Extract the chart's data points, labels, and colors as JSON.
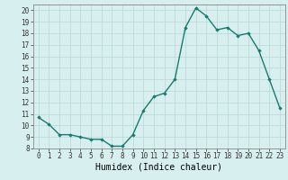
{
  "x": [
    0,
    1,
    2,
    3,
    4,
    5,
    6,
    7,
    8,
    9,
    10,
    11,
    12,
    13,
    14,
    15,
    16,
    17,
    18,
    19,
    20,
    21,
    22,
    23
  ],
  "y": [
    10.7,
    10.1,
    9.2,
    9.2,
    9.0,
    8.8,
    8.8,
    8.2,
    8.2,
    9.2,
    11.3,
    12.5,
    12.8,
    14.0,
    18.5,
    20.2,
    19.5,
    18.3,
    18.5,
    17.8,
    18.0,
    16.5,
    14.0,
    11.5
  ],
  "line_color": "#1a7a6e",
  "marker": "D",
  "marker_size": 1.8,
  "bg_color": "#d8efef",
  "grid_color": "#b8d8d8",
  "xlabel": "Humidex (Indice chaleur)",
  "ylim": [
    8,
    20.5
  ],
  "xlim": [
    -0.5,
    23.5
  ],
  "yticks": [
    8,
    9,
    10,
    11,
    12,
    13,
    14,
    15,
    16,
    17,
    18,
    19,
    20
  ],
  "xticks": [
    0,
    1,
    2,
    3,
    4,
    5,
    6,
    7,
    8,
    9,
    10,
    11,
    12,
    13,
    14,
    15,
    16,
    17,
    18,
    19,
    20,
    21,
    22,
    23
  ],
  "tick_label_size": 5.5,
  "xlabel_size": 7.0,
  "linewidth": 1.0
}
